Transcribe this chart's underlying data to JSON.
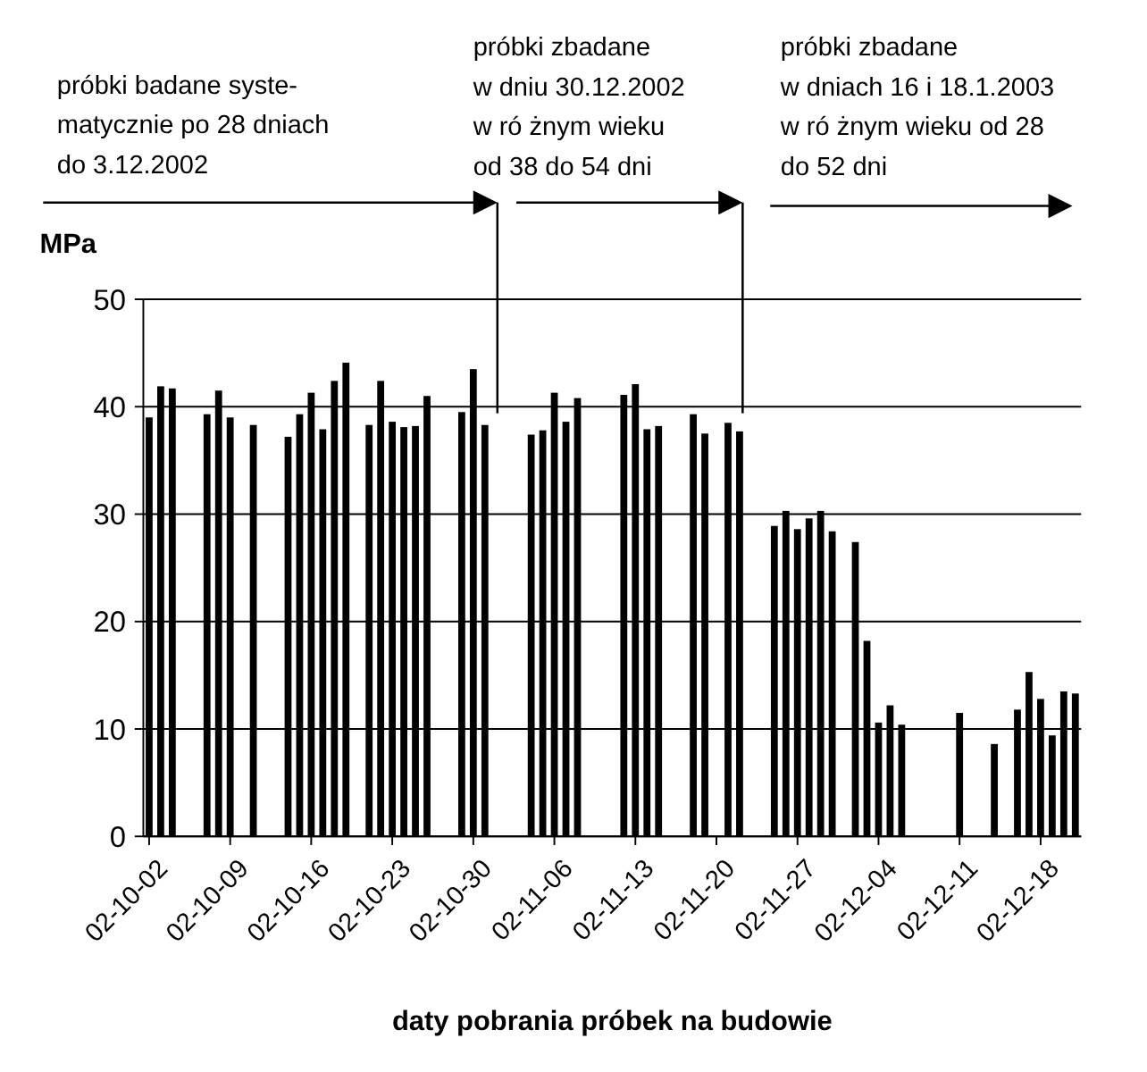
{
  "chart_data": {
    "type": "bar",
    "ylabel": "MPa",
    "xlabel": "daty pobrania próbek na budowie",
    "x": [
      "2002-10-02",
      "2002-10-03",
      "2002-10-04",
      "2002-10-07",
      "2002-10-08",
      "2002-10-09",
      "2002-10-11",
      "2002-10-14",
      "2002-10-15",
      "2002-10-16",
      "2002-10-17",
      "2002-10-18",
      "2002-10-19",
      "2002-10-21",
      "2002-10-22",
      "2002-10-23",
      "2002-10-24",
      "2002-10-25",
      "2002-10-26",
      "2002-10-29",
      "2002-10-30",
      "2002-10-31",
      "2002-11-04",
      "2002-11-05",
      "2002-11-06",
      "2002-11-07",
      "2002-11-08",
      "2002-11-12",
      "2002-11-13",
      "2002-11-14",
      "2002-11-15",
      "2002-11-18",
      "2002-11-19",
      "2002-11-21",
      "2002-11-22",
      "2002-11-25",
      "2002-11-26",
      "2002-11-27",
      "2002-11-28",
      "2002-11-29",
      "2002-11-30",
      "2002-12-02",
      "2002-12-03",
      "2002-12-04",
      "2002-12-05",
      "2002-12-06",
      "2002-12-11",
      "2002-12-14",
      "2002-12-16",
      "2002-12-17",
      "2002-12-18",
      "2002-12-19",
      "2002-12-20",
      "2002-12-21"
    ],
    "values": [
      39.0,
      41.9,
      41.7,
      39.3,
      41.5,
      39.0,
      38.3,
      37.2,
      39.3,
      41.3,
      37.9,
      42.4,
      44.1,
      38.3,
      42.4,
      38.6,
      38.1,
      38.2,
      41.0,
      39.5,
      43.5,
      38.3,
      37.4,
      37.8,
      41.3,
      38.6,
      40.8,
      41.1,
      42.1,
      37.9,
      38.2,
      39.3,
      37.5,
      38.5,
      37.7,
      28.9,
      30.3,
      28.6,
      29.6,
      30.3,
      28.4,
      27.4,
      18.2,
      10.6,
      12.2,
      10.4,
      11.5,
      8.6,
      11.8,
      15.3,
      12.8,
      9.4,
      13.5,
      13.3
    ],
    "color": "#000000",
    "xlim": [
      "2002-10-01T12:00",
      "2002-12-21T12:00"
    ],
    "xticks": [
      {
        "value": "2002-10-02",
        "label": "02-10-02"
      },
      {
        "value": "2002-10-09",
        "label": "02-10-09"
      },
      {
        "value": "2002-10-16",
        "label": "02-10-16"
      },
      {
        "value": "2002-10-23",
        "label": "02-10-23"
      },
      {
        "value": "2002-10-30",
        "label": "02-10-30"
      },
      {
        "value": "2002-11-06",
        "label": "02-11-06"
      },
      {
        "value": "2002-11-13",
        "label": "02-11-13"
      },
      {
        "value": "2002-11-20",
        "label": "02-11-20"
      },
      {
        "value": "2002-11-27",
        "label": "02-11-27"
      },
      {
        "value": "2002-12-04",
        "label": "02-12-04"
      },
      {
        "value": "2002-12-11",
        "label": "02-12-11"
      },
      {
        "value": "2002-12-18",
        "label": "02-12-18"
      }
    ],
    "ylim": [
      0,
      50
    ],
    "yticks": [
      0,
      10,
      20,
      30,
      40,
      50
    ],
    "grid": "y",
    "annotations": [
      "próbki badane syste-\nmatycznie po 28 dniach\ndo 3.12.2002",
      "próbki zbadane\nw dniu 30.12.2002\nw ró żnym wieku\nod 38 do 54 dni",
      "próbki zbadane\nw dniach 16 i 18.1.2003\nw ró żnym wieku od 28\ndo 52 dni"
    ]
  }
}
